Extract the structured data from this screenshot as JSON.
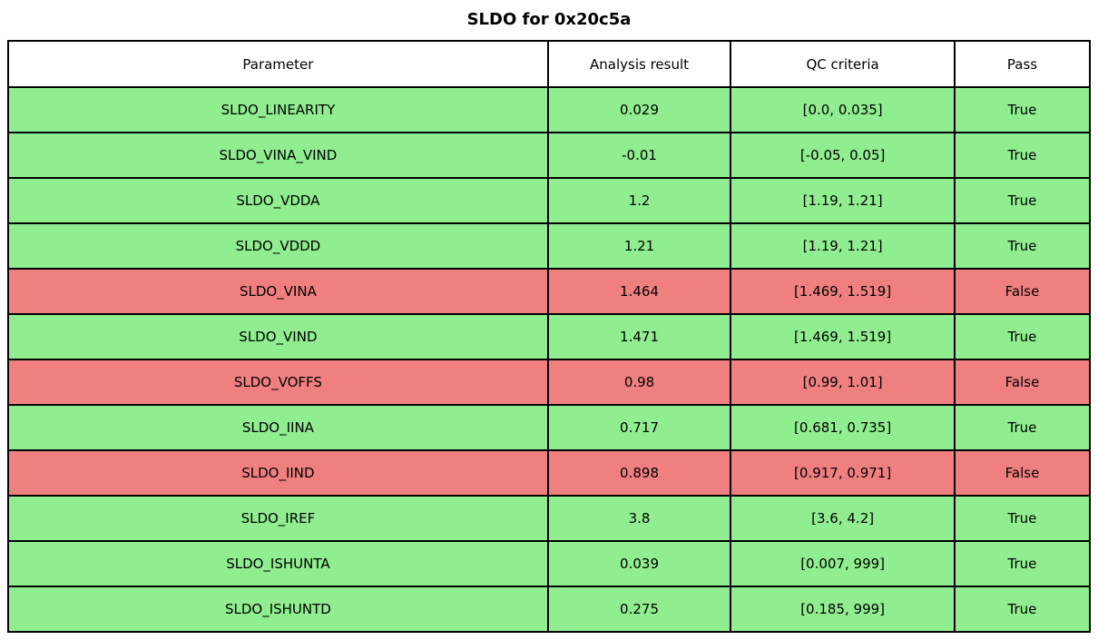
{
  "title": "SLDO for 0x20c5a",
  "status_colors": {
    "pass_row_background": "#90EE90",
    "fail_row_background": "#F08080",
    "border": "#000000",
    "header_background": "#FFFFFF",
    "text": "#000000"
  },
  "chart_data": {
    "type": "table",
    "title": "SLDO for 0x20c5a",
    "columns": [
      "Parameter",
      "Analysis result",
      "QC criteria",
      "Pass"
    ],
    "rows": [
      {
        "parameter": "SLDO_LINEARITY",
        "analysis_result": "0.029",
        "qc_criteria": "[0.0, 0.035]",
        "pass": "True"
      },
      {
        "parameter": "SLDO_VINA_VIND",
        "analysis_result": "-0.01",
        "qc_criteria": "[-0.05, 0.05]",
        "pass": "True"
      },
      {
        "parameter": "SLDO_VDDA",
        "analysis_result": "1.2",
        "qc_criteria": "[1.19, 1.21]",
        "pass": "True"
      },
      {
        "parameter": "SLDO_VDDD",
        "analysis_result": "1.21",
        "qc_criteria": "[1.19, 1.21]",
        "pass": "True"
      },
      {
        "parameter": "SLDO_VINA",
        "analysis_result": "1.464",
        "qc_criteria": "[1.469, 1.519]",
        "pass": "False"
      },
      {
        "parameter": "SLDO_VIND",
        "analysis_result": "1.471",
        "qc_criteria": "[1.469, 1.519]",
        "pass": "True"
      },
      {
        "parameter": "SLDO_VOFFS",
        "analysis_result": "0.98",
        "qc_criteria": "[0.99, 1.01]",
        "pass": "False"
      },
      {
        "parameter": "SLDO_IINA",
        "analysis_result": "0.717",
        "qc_criteria": "[0.681, 0.735]",
        "pass": "True"
      },
      {
        "parameter": "SLDO_IIND",
        "analysis_result": "0.898",
        "qc_criteria": "[0.917, 0.971]",
        "pass": "False"
      },
      {
        "parameter": "SLDO_IREF",
        "analysis_result": "3.8",
        "qc_criteria": "[3.6, 4.2]",
        "pass": "True"
      },
      {
        "parameter": "SLDO_ISHUNTA",
        "analysis_result": "0.039",
        "qc_criteria": "[0.007, 999]",
        "pass": "True"
      },
      {
        "parameter": "SLDO_ISHUNTD",
        "analysis_result": "0.275",
        "qc_criteria": "[0.185, 999]",
        "pass": "True"
      }
    ],
    "layout": {
      "legend": "none",
      "grid": "table-borders",
      "column_width_percent": [
        49.9,
        16.9,
        20.7,
        12.5
      ]
    }
  }
}
